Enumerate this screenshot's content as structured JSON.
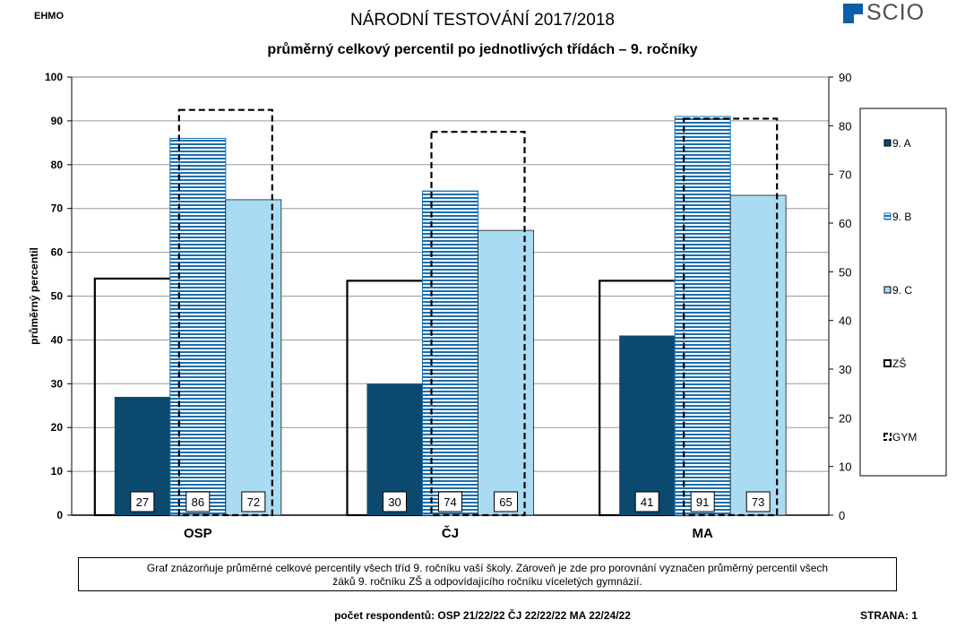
{
  "header": {
    "school": "EHMO",
    "title": "NÁRODNÍ TESTOVÁNÍ 2017/2018",
    "subtitle": "průměrný celkový percentil po jednotlivých třídách – 9. ročníky",
    "logo_text": "SCIO"
  },
  "chart_data": {
    "type": "bar",
    "categories": [
      "OSP",
      "ČJ",
      "MA"
    ],
    "ylabel": "průměrný percentil",
    "ylim": [
      0,
      100
    ],
    "yticks": [
      0,
      10,
      20,
      30,
      40,
      50,
      60,
      70,
      80,
      90,
      100
    ],
    "y2lim": [
      0,
      90
    ],
    "y2ticks": [
      0,
      10,
      20,
      30,
      40,
      50,
      60,
      70,
      80,
      90
    ],
    "grid": true,
    "legend_position": "right",
    "series": [
      {
        "name": "9. A",
        "values": [
          27,
          30,
          41
        ],
        "labels": [
          "27",
          "30",
          "41"
        ],
        "style": "solid",
        "color": "#0b4a6e"
      },
      {
        "name": "9. B",
        "values": [
          86,
          74,
          91
        ],
        "labels": [
          "86",
          "74",
          "91"
        ],
        "style": "stripes",
        "color": "#1a6fb0"
      },
      {
        "name": "9. C",
        "values": [
          72,
          65,
          73
        ],
        "labels": [
          "72",
          "65",
          "73"
        ],
        "style": "solid",
        "color": "#a9dcf2"
      },
      {
        "name": "ZŠ",
        "values": [
          54,
          53.5,
          53.5
        ],
        "style": "outline-solid",
        "color": "#000000"
      },
      {
        "name": "GYM",
        "values": [
          92.5,
          87.5,
          90.5
        ],
        "style": "outline-dashed",
        "color": "#000000"
      }
    ]
  },
  "note": {
    "line1": "Graf znázorňuje průměrné celkové percentily všech tříd 9. ročníku vaší školy. Zároveň je zde pro porovnání vyznačen průměrný percentil všech",
    "line2": "žáků  9. ročníku ZŠ a odpovídajícího ročníku víceletých gymnázií."
  },
  "footer": {
    "respondents": "počet respondentů: OSP 21/22/22  ČJ 22/22/22  MA 22/24/22",
    "page": "STRANA: 1"
  }
}
